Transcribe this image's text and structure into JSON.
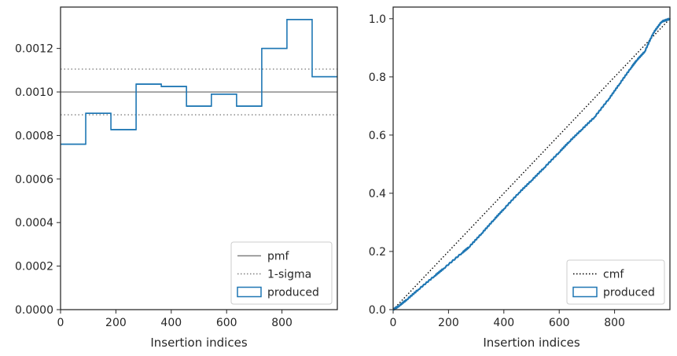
{
  "chart_data": [
    {
      "type": "step",
      "xlabel": "Insertion indices",
      "ylabel": "",
      "xlim": [
        0,
        1000
      ],
      "ylim": [
        0,
        0.00139
      ],
      "xticks": [
        "0",
        "200",
        "400",
        "600",
        "800"
      ],
      "yticks": [
        "0.0000",
        "0.0002",
        "0.0004",
        "0.0006",
        "0.0008",
        "0.0010",
        "0.0012"
      ],
      "reference_lines": [
        {
          "name": "pmf",
          "y": 0.001,
          "style": "solid",
          "color": "#808080"
        },
        {
          "name": "1-sigma",
          "y": [
            0.000895,
            0.001105
          ],
          "style": "dotted",
          "color": "#808080"
        }
      ],
      "series": [
        {
          "name": "produced",
          "color": "#1f77b4",
          "bin_edges": [
            0,
            91,
            182,
            273,
            364,
            455,
            545,
            636,
            727,
            818,
            909,
            1000
          ],
          "values": [
            0.00076,
            0.000902,
            0.000827,
            0.001036,
            0.001025,
            0.000935,
            0.00099,
            0.000935,
            0.0012,
            0.001333,
            0.00107
          ]
        }
      ],
      "legend": {
        "placement": "lower-right",
        "entries": [
          {
            "label": "pmf",
            "marker": "line-solid",
            "color": "#808080"
          },
          {
            "label": "1-sigma",
            "marker": "line-dotted",
            "color": "#808080"
          },
          {
            "label": "produced",
            "marker": "box",
            "color": "#1f77b4"
          }
        ]
      },
      "grid": false
    },
    {
      "type": "line",
      "xlabel": "Insertion indices",
      "ylabel": "",
      "xlim": [
        0,
        1000
      ],
      "ylim": [
        0,
        1.04
      ],
      "xticks": [
        "0",
        "200",
        "400",
        "600",
        "800"
      ],
      "yticks": [
        "0.0",
        "0.2",
        "0.4",
        "0.6",
        "0.8",
        "1.0"
      ],
      "series": [
        {
          "name": "cmf",
          "style": "dotted",
          "color": "#000000",
          "x": [
            0,
            1000
          ],
          "y": [
            0,
            1
          ]
        },
        {
          "name": "produced",
          "style": "solid",
          "color": "#1f77b4",
          "x": [
            0,
            20,
            50,
            91,
            150,
            182,
            250,
            273,
            320,
            364,
            400,
            455,
            500,
            545,
            600,
            636,
            680,
            727,
            780,
            818,
            860,
            880,
            909,
            940,
            970,
            1000
          ],
          "y": [
            0,
            0.012,
            0.035,
            0.069,
            0.116,
            0.141,
            0.196,
            0.214,
            0.262,
            0.309,
            0.346,
            0.402,
            0.444,
            0.487,
            0.541,
            0.577,
            0.618,
            0.661,
            0.725,
            0.776,
            0.832,
            0.857,
            0.887,
            0.951,
            0.99,
            1.0
          ]
        }
      ],
      "legend": {
        "placement": "lower-right",
        "entries": [
          {
            "label": "cmf",
            "marker": "line-dotted",
            "color": "#000000"
          },
          {
            "label": "produced",
            "marker": "box",
            "color": "#1f77b4"
          }
        ]
      },
      "grid": false
    }
  ]
}
